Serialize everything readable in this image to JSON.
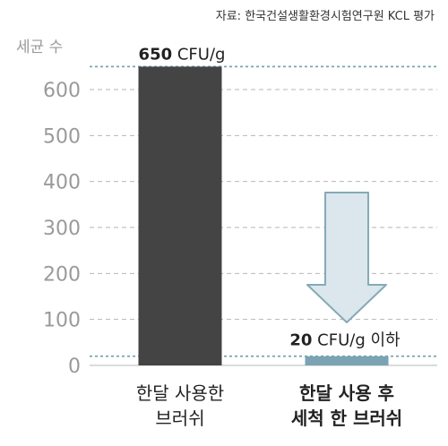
{
  "source_note": "자료: 한국건설생활환경시험연구원 KCL 평가",
  "chart_data": {
    "type": "bar",
    "title": "",
    "ylabel": "세균 수",
    "xlabel": "",
    "ylim": [
      0,
      650
    ],
    "yticks": [
      "0",
      "100",
      "200",
      "300",
      "400",
      "500",
      "600"
    ],
    "grid": true,
    "categories": [
      {
        "line1": "한달 사용한",
        "line2": "브러쉬",
        "bold": false
      },
      {
        "line1": "한달 사용 후",
        "line2": "세척 한 브러쉬",
        "bold": true
      }
    ],
    "values": [
      650,
      20
    ],
    "data_labels": [
      {
        "number": "650",
        "unit": " CFU/g"
      },
      {
        "number": "20",
        "unit": " CFU/g 이하"
      }
    ],
    "reference_lines": [
      650,
      20
    ],
    "colors": {
      "bar_1": "#444444",
      "bar_2": "#7aa3b3",
      "arrow_fill": "#dbe7ec",
      "arrow_stroke": "#86a9b8",
      "grid": "#b5b5b5",
      "reference_line": "#7aa3b3",
      "axis": "#cfcfcf"
    }
  }
}
